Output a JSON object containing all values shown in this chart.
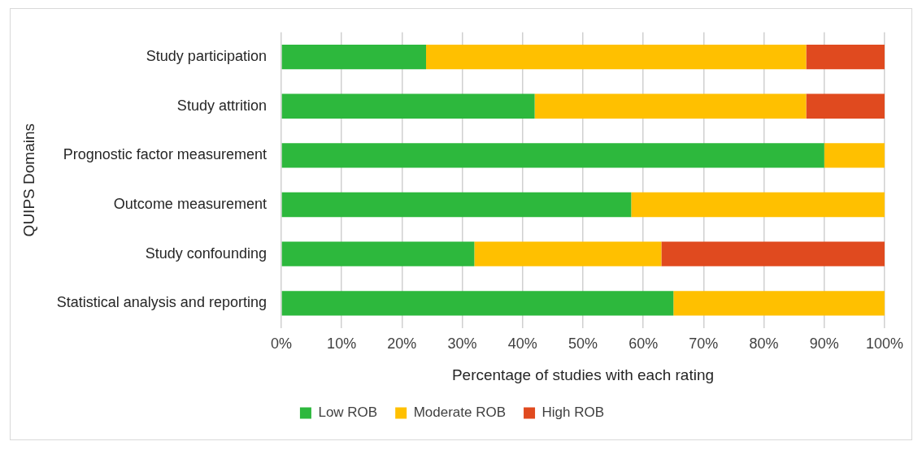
{
  "chart_data": {
    "type": "bar",
    "orientation": "horizontal",
    "stacked": true,
    "categories": [
      "Study participation",
      "Study attrition",
      "Prognostic factor measurement",
      "Outcome measurement",
      "Study confounding",
      "Statistical analysis and reporting"
    ],
    "series": [
      {
        "name": "Low ROB",
        "color": "#2db83d",
        "values": [
          24,
          42,
          90,
          58,
          32,
          65
        ]
      },
      {
        "name": "Moderate ROB",
        "color": "#ffc000",
        "values": [
          63,
          45,
          10,
          42,
          31,
          35
        ]
      },
      {
        "name": "High ROB",
        "color": "#e04a1f",
        "values": [
          13,
          13,
          0,
          0,
          37,
          0
        ]
      }
    ],
    "xlabel": "Percentage of studies with each rating",
    "ylabel": "QUIPS Domains",
    "xlim": [
      0,
      100
    ],
    "xticks": [
      {
        "value": 0,
        "label": "0%"
      },
      {
        "value": 10,
        "label": "10%"
      },
      {
        "value": 20,
        "label": "20%"
      },
      {
        "value": 30,
        "label": "30%"
      },
      {
        "value": 40,
        "label": "40%"
      },
      {
        "value": 50,
        "label": "50%"
      },
      {
        "value": 60,
        "label": "60%"
      },
      {
        "value": 70,
        "label": "70%"
      },
      {
        "value": 80,
        "label": "80%"
      },
      {
        "value": 90,
        "label": "90%"
      },
      {
        "value": 100,
        "label": "100%"
      }
    ],
    "grid": "x",
    "legend": "bottom"
  }
}
